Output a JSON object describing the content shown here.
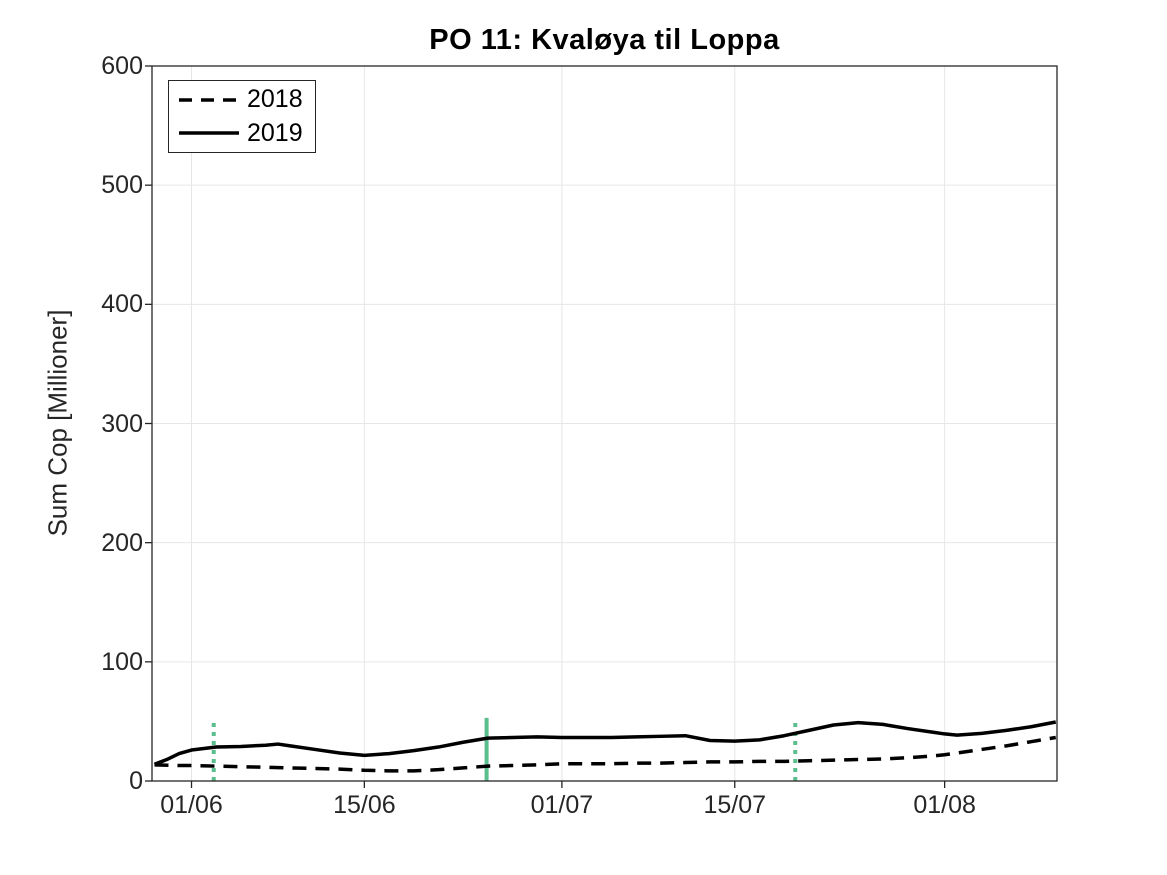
{
  "figure": {
    "background": "#ffffff"
  },
  "colors": {
    "series_line": "#000000",
    "axis": "#262626",
    "grid": "#e6e6e6",
    "marker_green": "#5abe8d",
    "title_text": "#000000",
    "tick_text": "#262626"
  },
  "legend": {
    "position": "top-left",
    "items": [
      {
        "label": "2018",
        "style": "dashed"
      },
      {
        "label": "2019",
        "style": "solid"
      }
    ]
  },
  "chart_data": {
    "type": "line",
    "title": "PO 11: Kvaløya til Loppa",
    "xlabel": "",
    "ylabel": "Sum Cop [Millioner]",
    "ylim": [
      0,
      600
    ],
    "yticks": [
      0,
      100,
      200,
      300,
      400,
      500,
      600
    ],
    "x_unit": "days since 01/06",
    "xlim": [
      -3.2,
      70.1
    ],
    "xticks": [
      {
        "pos": 0,
        "label": "01/06"
      },
      {
        "pos": 14,
        "label": "15/06"
      },
      {
        "pos": 30,
        "label": "01/07"
      },
      {
        "pos": 44,
        "label": "15/07"
      },
      {
        "pos": 61,
        "label": "01/08"
      }
    ],
    "grid": true,
    "legend_position": "top-left",
    "series": [
      {
        "name": "2018",
        "style": "dashed",
        "color": "#000000",
        "x": [
          -3,
          -1,
          0,
          2,
          4,
          6,
          8,
          10,
          12,
          14,
          16,
          18,
          20,
          22,
          24,
          26,
          28,
          30,
          32,
          34,
          36,
          38,
          40,
          42,
          44,
          46,
          48,
          50,
          52,
          54,
          56,
          58,
          60,
          61,
          62,
          64,
          66,
          68,
          70
        ],
        "values": [
          13.5,
          13,
          13,
          12.5,
          12,
          11.5,
          11,
          10.5,
          10,
          9,
          8.5,
          8.5,
          9.5,
          11,
          12.5,
          13,
          13.5,
          14.5,
          14.5,
          14.5,
          15,
          15,
          15.5,
          16,
          16,
          16.5,
          16.5,
          17,
          17.5,
          18,
          18.5,
          19.5,
          21,
          22,
          23.5,
          26.5,
          29.5,
          33,
          36.5
        ]
      },
      {
        "name": "2019",
        "style": "solid",
        "color": "#000000",
        "x": [
          -3,
          -2,
          -1,
          0,
          2,
          4,
          6,
          7,
          8,
          10,
          12,
          14,
          16,
          18,
          20,
          22,
          24,
          26,
          28,
          30,
          32,
          34,
          36,
          38,
          40,
          42,
          44,
          46,
          48,
          50,
          52,
          54,
          56,
          58,
          60,
          61,
          62,
          64,
          66,
          68,
          70
        ],
        "values": [
          14,
          18,
          23,
          26,
          28.5,
          29,
          30,
          31,
          29.5,
          26.5,
          23.5,
          21.5,
          23,
          25.5,
          28.5,
          32.5,
          36,
          36.5,
          37,
          36.5,
          36.5,
          36.5,
          37,
          37.5,
          38,
          34,
          33.5,
          34.5,
          38,
          42.5,
          47,
          49,
          47.5,
          44,
          41,
          39.5,
          38.5,
          40,
          42.5,
          45.5,
          49.5
        ]
      }
    ],
    "vlines": [
      {
        "x": 1.8,
        "y0": 0,
        "y1": 52,
        "style": "dotted",
        "color": "#5abe8d"
      },
      {
        "x": 23.9,
        "y0": 0,
        "y1": 53,
        "style": "solid",
        "color": "#5abe8d"
      },
      {
        "x": 48.9,
        "y0": 0,
        "y1": 52,
        "style": "dotted",
        "color": "#5abe8d"
      }
    ]
  }
}
